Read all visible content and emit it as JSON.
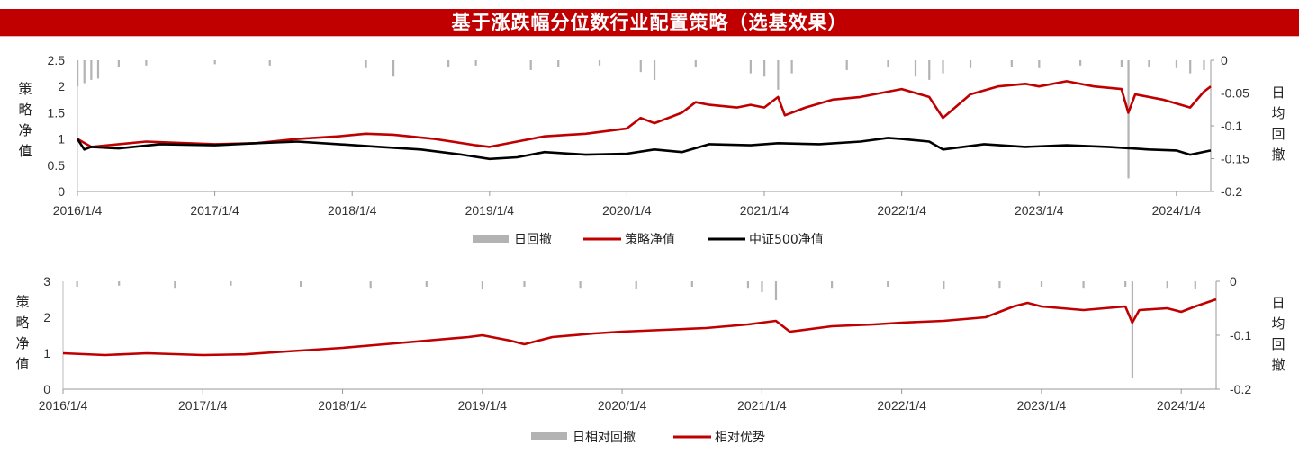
{
  "title": "基于涨跌幅分位数行业配置策略（选基效果）",
  "colors": {
    "banner": "#c00000",
    "strategy": "#c00000",
    "benchmark": "#000000",
    "drawdown": "#b3b3b3",
    "relative": "#c00000"
  },
  "chart_data": [
    {
      "type": "line",
      "x_tick_labels": [
        "2016/1/4",
        "2017/1/4",
        "2018/1/4",
        "2019/1/4",
        "2020/1/4",
        "2021/1/4",
        "2022/1/4",
        "2023/1/4",
        "2024/1/4"
      ],
      "x_range": [
        "2016/1/4",
        "2024/4/1"
      ],
      "y_left": {
        "label": "策略净值",
        "ticks": [
          "0",
          "0.5",
          "1",
          "1.5",
          "2",
          "2.5"
        ],
        "range": [
          0,
          2.5
        ]
      },
      "y_right": {
        "label": "日均回撤",
        "ticks": [
          "0",
          "-0.05",
          "-0.1",
          "-0.15",
          "-0.2"
        ],
        "range": [
          -0.2,
          0
        ]
      },
      "legend_position": "bottom",
      "series": [
        {
          "name": "日回撤",
          "kind": "bar",
          "axis": "right",
          "x": [
            2016.0,
            2016.05,
            2016.1,
            2016.15,
            2016.3,
            2016.5,
            2017.0,
            2017.4,
            2018.1,
            2018.3,
            2018.7,
            2018.9,
            2019.3,
            2019.5,
            2019.8,
            2020.1,
            2020.2,
            2020.5,
            2020.9,
            2021.0,
            2021.1,
            2021.2,
            2021.6,
            2021.9,
            2022.1,
            2022.2,
            2022.3,
            2022.5,
            2022.8,
            2023.0,
            2023.3,
            2023.6,
            2023.65,
            2023.8,
            2024.0,
            2024.1,
            2024.2
          ],
          "values": [
            -0.04,
            -0.035,
            -0.03,
            -0.028,
            -0.01,
            -0.008,
            -0.006,
            -0.008,
            -0.012,
            -0.025,
            -0.01,
            -0.008,
            -0.015,
            -0.01,
            -0.008,
            -0.018,
            -0.03,
            -0.01,
            -0.02,
            -0.025,
            -0.045,
            -0.02,
            -0.015,
            -0.01,
            -0.025,
            -0.03,
            -0.02,
            -0.012,
            -0.01,
            -0.012,
            -0.008,
            -0.01,
            -0.18,
            -0.01,
            -0.012,
            -0.02,
            -0.015
          ]
        },
        {
          "name": "策略净值",
          "kind": "line",
          "axis": "left",
          "x": [
            2016.0,
            2016.1,
            2016.3,
            2016.5,
            2016.8,
            2017.0,
            2017.3,
            2017.6,
            2017.9,
            2018.1,
            2018.3,
            2018.6,
            2018.9,
            2019.0,
            2019.2,
            2019.4,
            2019.7,
            2020.0,
            2020.1,
            2020.2,
            2020.4,
            2020.5,
            2020.6,
            2020.8,
            2020.9,
            2021.0,
            2021.1,
            2021.15,
            2021.3,
            2021.5,
            2021.7,
            2021.9,
            2022.0,
            2022.2,
            2022.3,
            2022.5,
            2022.7,
            2022.9,
            2023.0,
            2023.2,
            2023.4,
            2023.6,
            2023.65,
            2023.7,
            2023.9,
            2024.1,
            2024.2,
            2024.25
          ],
          "values": [
            1.0,
            0.85,
            0.9,
            0.95,
            0.92,
            0.9,
            0.92,
            1.0,
            1.05,
            1.1,
            1.08,
            1.0,
            0.88,
            0.85,
            0.95,
            1.05,
            1.1,
            1.2,
            1.4,
            1.3,
            1.5,
            1.7,
            1.65,
            1.6,
            1.65,
            1.6,
            1.8,
            1.45,
            1.6,
            1.75,
            1.8,
            1.9,
            1.95,
            1.8,
            1.4,
            1.85,
            2.0,
            2.05,
            2.0,
            2.1,
            2.0,
            1.95,
            1.5,
            1.85,
            1.75,
            1.6,
            1.9,
            2.0
          ]
        },
        {
          "name": "中证500净值",
          "kind": "line",
          "axis": "left",
          "x": [
            2016.0,
            2016.05,
            2016.1,
            2016.3,
            2016.6,
            2017.0,
            2017.3,
            2017.6,
            2017.9,
            2018.2,
            2018.5,
            2018.8,
            2019.0,
            2019.2,
            2019.4,
            2019.7,
            2020.0,
            2020.2,
            2020.4,
            2020.6,
            2020.9,
            2021.1,
            2021.4,
            2021.7,
            2021.9,
            2022.0,
            2022.2,
            2022.3,
            2022.6,
            2022.9,
            2023.2,
            2023.5,
            2023.8,
            2024.0,
            2024.1,
            2024.25
          ],
          "values": [
            1.0,
            0.8,
            0.85,
            0.82,
            0.9,
            0.88,
            0.92,
            0.95,
            0.9,
            0.85,
            0.8,
            0.7,
            0.62,
            0.65,
            0.75,
            0.7,
            0.72,
            0.8,
            0.75,
            0.9,
            0.88,
            0.92,
            0.9,
            0.95,
            1.02,
            1.0,
            0.95,
            0.8,
            0.9,
            0.85,
            0.88,
            0.85,
            0.8,
            0.78,
            0.7,
            0.78
          ]
        }
      ]
    },
    {
      "type": "line",
      "x_tick_labels": [
        "2016/1/4",
        "2017/1/4",
        "2018/1/4",
        "2019/1/4",
        "2020/1/4",
        "2021/1/4",
        "2022/1/4",
        "2023/1/4",
        "2024/1/4"
      ],
      "x_range": [
        "2016/1/4",
        "2024/4/1"
      ],
      "y_left": {
        "label": "策略净值",
        "ticks": [
          "0",
          "1",
          "2",
          "3"
        ],
        "range": [
          0,
          3
        ]
      },
      "y_right": {
        "label": "日均回撤",
        "ticks": [
          "0",
          "-0.1",
          "-0.2"
        ],
        "range": [
          -0.2,
          0
        ]
      },
      "legend_position": "bottom",
      "series": [
        {
          "name": "日相对回撤",
          "kind": "bar",
          "axis": "right",
          "x": [
            2016.1,
            2016.4,
            2016.8,
            2017.2,
            2017.7,
            2018.2,
            2018.6,
            2019.0,
            2019.3,
            2019.7,
            2020.1,
            2020.5,
            2020.9,
            2021.0,
            2021.1,
            2021.5,
            2021.9,
            2022.3,
            2022.7,
            2023.0,
            2023.3,
            2023.6,
            2023.65,
            2023.9,
            2024.1
          ],
          "values": [
            -0.01,
            -0.008,
            -0.012,
            -0.008,
            -0.01,
            -0.012,
            -0.01,
            -0.015,
            -0.01,
            -0.012,
            -0.015,
            -0.01,
            -0.012,
            -0.02,
            -0.035,
            -0.012,
            -0.01,
            -0.015,
            -0.012,
            -0.01,
            -0.012,
            -0.01,
            -0.18,
            -0.012,
            -0.015
          ]
        },
        {
          "name": "相对优势",
          "kind": "line",
          "axis": "left",
          "x": [
            2016.0,
            2016.3,
            2016.6,
            2017.0,
            2017.3,
            2017.6,
            2018.0,
            2018.3,
            2018.6,
            2018.9,
            2019.0,
            2019.2,
            2019.3,
            2019.5,
            2019.8,
            2020.0,
            2020.3,
            2020.6,
            2020.9,
            2021.0,
            2021.1,
            2021.2,
            2021.5,
            2021.8,
            2022.0,
            2022.3,
            2022.6,
            2022.8,
            2022.9,
            2023.0,
            2023.3,
            2023.6,
            2023.65,
            2023.7,
            2023.9,
            2024.0,
            2024.1,
            2024.25
          ],
          "values": [
            1.0,
            0.95,
            1.0,
            0.95,
            0.97,
            1.05,
            1.15,
            1.25,
            1.35,
            1.45,
            1.5,
            1.35,
            1.25,
            1.45,
            1.55,
            1.6,
            1.65,
            1.7,
            1.8,
            1.85,
            1.9,
            1.6,
            1.75,
            1.8,
            1.85,
            1.9,
            2.0,
            2.3,
            2.4,
            2.3,
            2.2,
            2.3,
            1.85,
            2.2,
            2.25,
            2.15,
            2.3,
            2.5
          ]
        }
      ]
    }
  ]
}
